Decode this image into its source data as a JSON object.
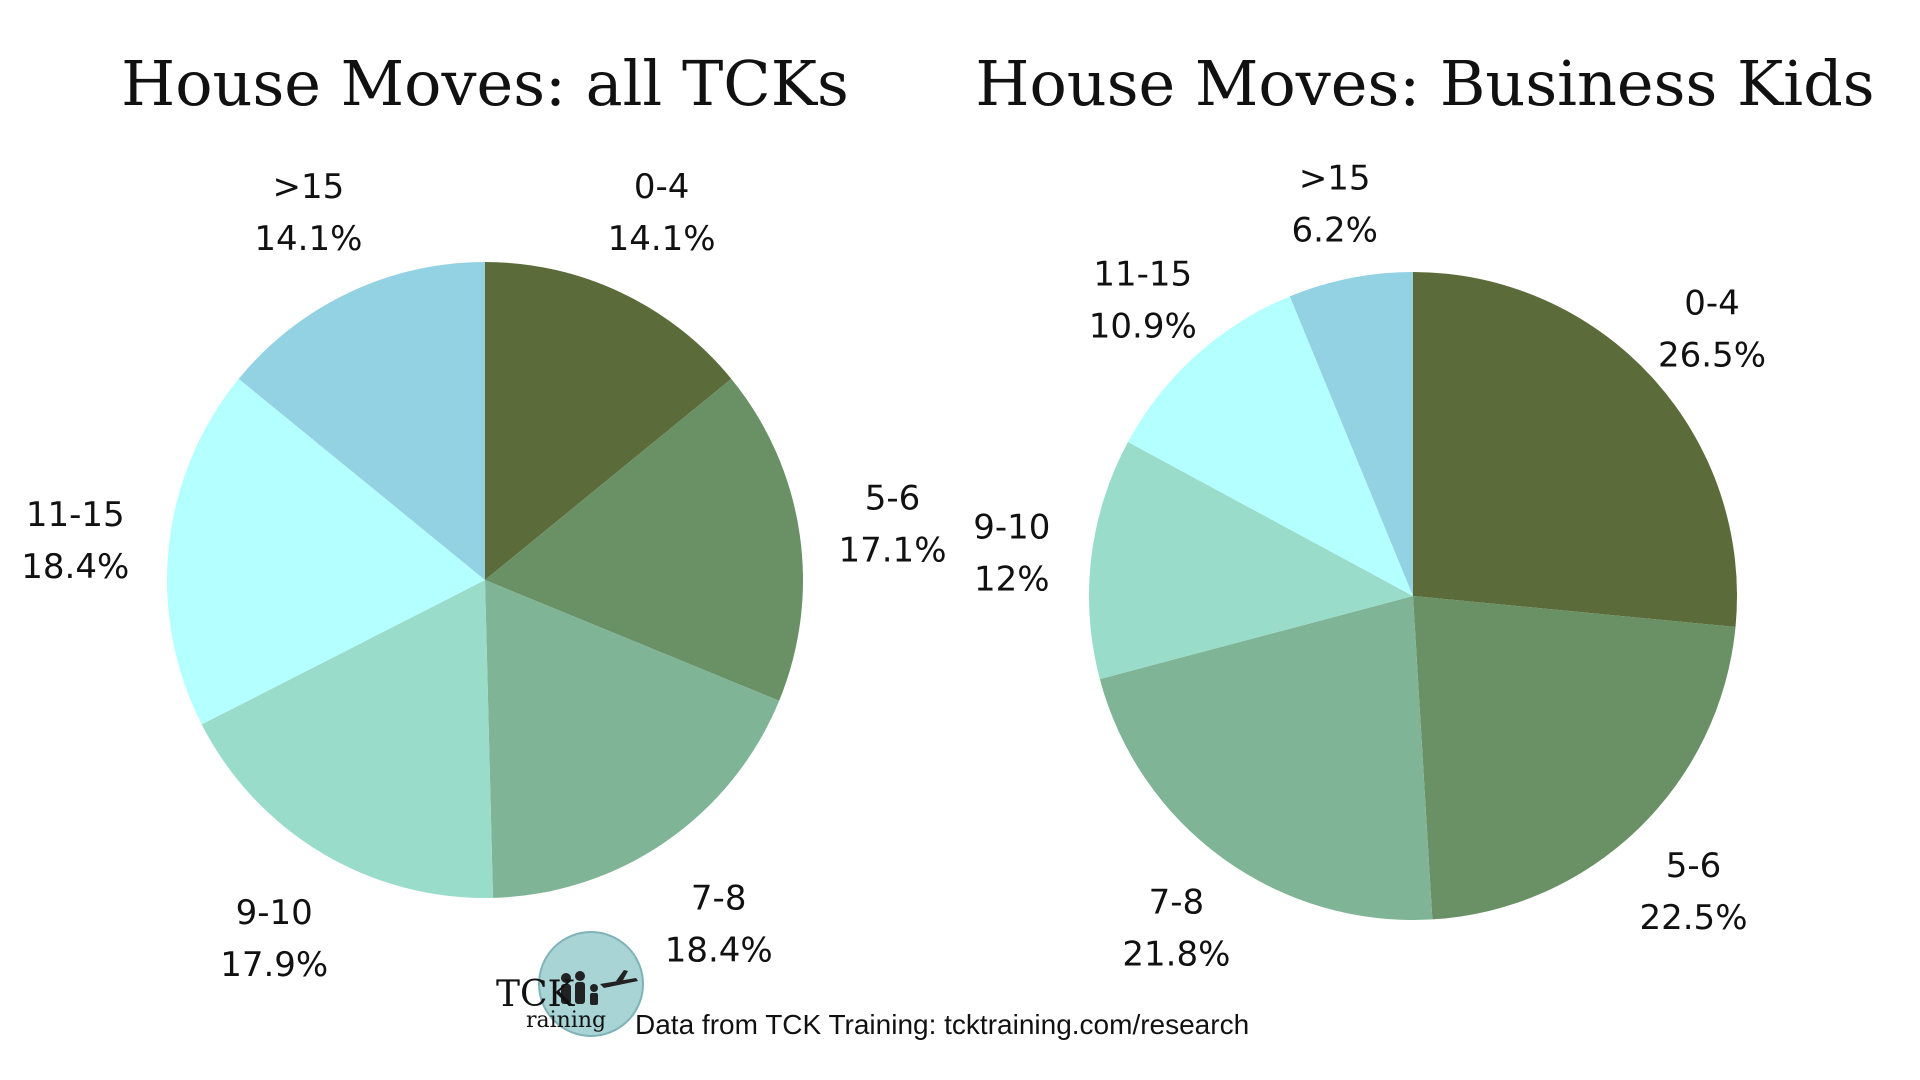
{
  "chart_data": [
    {
      "type": "pie",
      "title": "House Moves: all TCKs",
      "categories": [
        "0-4",
        "5-6",
        "7-8",
        "9-10",
        "11-15",
        ">15"
      ],
      "values": [
        14.1,
        17.1,
        18.4,
        17.9,
        18.4,
        14.1
      ],
      "labels": [
        "14.1%",
        "17.1%",
        "18.4%",
        "17.9%",
        "18.4%",
        "14.1%"
      ],
      "colors": [
        "#5c6b3a",
        "#6a9066",
        "#7fb496",
        "#99dcca",
        "#b4ffff",
        "#93d2e3"
      ],
      "legend": "none"
    },
    {
      "type": "pie",
      "title": "House Moves: Business Kids",
      "categories": [
        "0-4",
        "5-6",
        "7-8",
        "9-10",
        "11-15",
        ">15"
      ],
      "values": [
        26.5,
        22.5,
        21.8,
        12,
        10.9,
        6.2
      ],
      "labels": [
        "26.5%",
        "22.5%",
        "21.8%",
        "12%",
        "10.9%",
        "6.2%"
      ],
      "colors": [
        "#5c6b3a",
        "#6a9066",
        "#7fb496",
        "#99dcca",
        "#b4ffff",
        "#93d2e3"
      ],
      "legend": "none"
    }
  ],
  "footer": {
    "source_text": "Data from TCK Training: tcktraining.com/research",
    "logo_line1": "TCK",
    "logo_line2": "raining"
  }
}
